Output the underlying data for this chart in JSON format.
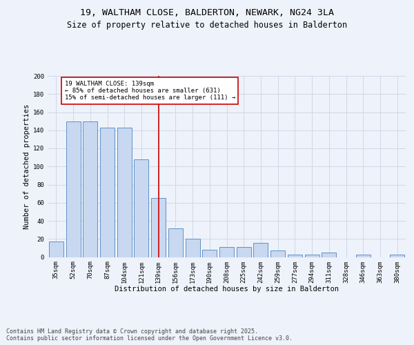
{
  "title_line1": "19, WALTHAM CLOSE, BALDERTON, NEWARK, NG24 3LA",
  "title_line2": "Size of property relative to detached houses in Balderton",
  "xlabel": "Distribution of detached houses by size in Balderton",
  "ylabel": "Number of detached properties",
  "categories": [
    "35sqm",
    "52sqm",
    "70sqm",
    "87sqm",
    "104sqm",
    "121sqm",
    "139sqm",
    "156sqm",
    "173sqm",
    "190sqm",
    "208sqm",
    "225sqm",
    "242sqm",
    "259sqm",
    "277sqm",
    "294sqm",
    "311sqm",
    "328sqm",
    "346sqm",
    "363sqm",
    "380sqm"
  ],
  "values": [
    17,
    150,
    150,
    143,
    143,
    108,
    65,
    32,
    20,
    8,
    11,
    11,
    16,
    7,
    3,
    3,
    5,
    0,
    3,
    0,
    3
  ],
  "bar_color": "#c8d8f0",
  "bar_edge_color": "#6090c8",
  "grid_color": "#d0d8e8",
  "background_color": "#eef2fa",
  "annotation_text": "19 WALTHAM CLOSE: 139sqm\n← 85% of detached houses are smaller (631)\n15% of semi-detached houses are larger (111) →",
  "annotation_box_color": "#ffffff",
  "annotation_box_edge": "#cc0000",
  "vline_x_index": 6,
  "vline_color": "#cc0000",
  "ylim": [
    0,
    200
  ],
  "yticks": [
    0,
    20,
    40,
    60,
    80,
    100,
    120,
    140,
    160,
    180,
    200
  ],
  "footer_text": "Contains HM Land Registry data © Crown copyright and database right 2025.\nContains public sector information licensed under the Open Government Licence v3.0.",
  "title_fontsize": 9.5,
  "subtitle_fontsize": 8.5,
  "axis_label_fontsize": 7.5,
  "tick_fontsize": 6.5,
  "annotation_fontsize": 6.5,
  "footer_fontsize": 6.0
}
